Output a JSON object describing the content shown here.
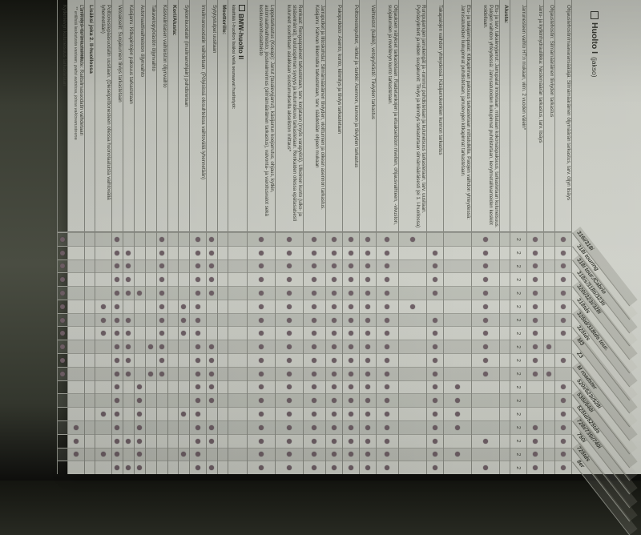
{
  "photo": {
    "background": "#3a3d33",
    "paper": "#cccec6",
    "band": "#b7b9b1",
    "dot": "#6b5c62",
    "grid": "#83857d",
    "ink": "#3b3d35"
  },
  "document": {
    "title": "Huolto I",
    "title_suffix": "(jakso)",
    "models": [
      "316i/318i",
      "318i touring",
      "318i tour./Cabrio",
      "318is/318ti/323ti",
      "320i/323i/328i",
      "318tds",
      "325td/318tds tour.",
      "325tds",
      "M3",
      "Z3",
      "M roadster",
      "520i/523i/528i",
      "535i/540i",
      "525td/525tds",
      "728i/735i/740i",
      "750i",
      "725tds",
      "8er"
    ],
    "rows": [
      {
        "kind": "task",
        "text": "Ohjaustehostin/maavaransäätäjä: Silmämääräinen öljymäärän tarkastus, tarv. öljyn lisäys",
        "lines": 2,
        "mark": "dot",
        "models": [
          1,
          2,
          3,
          4,
          5,
          6,
          7,
          8,
          10,
          12,
          13,
          14,
          15,
          16,
          17,
          18
        ]
      },
      {
        "kind": "task",
        "text": "Ohjaustehostin: Silmämääräinen tiiviyden tarkastus",
        "lines": 1,
        "mark": "dot",
        "models": [
          9,
          11
        ]
      },
      {
        "kind": "task",
        "text": "Jarru- ja kytkinhydrauliikka: Nestemäärän tarkastus, tarv. lisäys",
        "lines": 2,
        "mark": "dot",
        "models": [
          1,
          2,
          3,
          4,
          5,
          6,
          7,
          8,
          9,
          10,
          11,
          15,
          16,
          17,
          18
        ]
      },
      {
        "kind": "task",
        "text": "Jarrunesteen vaihto HT:n mukaan, viim. 2 vuoden välein*",
        "lines": 2,
        "mark": "two",
        "models": "all"
      },
      {
        "kind": "header",
        "text": "Alusta:"
      },
      {
        "kind": "task",
        "text": "Etu- ja tarv. takalevyjarrut: Jarrupalat irrotetaan, mitataan kokonaispaksuus, tarkastetaan kuluneisuus. Palojen vaihdon yhteydessä: Jarrusatuloiden liukupinnat puhdistetaan, kevytmetallivanteiden keskiöt voidellaan.",
        "lines": 4,
        "mark": "dot",
        "models": [
          1,
          2,
          3,
          4,
          5,
          6,
          7,
          8,
          9,
          10,
          11,
          16,
          18
        ]
      },
      {
        "kind": "task",
        "text": "Etu- ja takajarrupalat: Kitkapinnan paksuus tarkastetaan mittatulkilla. Palojen vaihdon yhteydessä: Jarrusatuloiden liukupinnat puhdistetaan, jarrulevyjen kitkapinnat tarkastetaan.",
        "lines": 4,
        "mark": "dot",
        "models": [
          12,
          13,
          14,
          15,
          17
        ]
      },
      {
        "kind": "task",
        "text": "Takapalojen vaihdon yhteydessä: Käsijarrukenkien kunnon tarkastus",
        "lines": 2,
        "mark": "dot",
        "models": [
          2,
          3,
          4,
          5,
          7,
          8,
          9,
          10,
          11,
          12,
          13,
          14,
          15,
          16,
          17,
          18
        ]
      },
      {
        "kind": "task",
        "text": "Rumpujarrujen jarrukengät ja -rummut puhdistetaan ja kuluneisuus tarkastetaan, tarv. uusitaan. Pyöräsylinterit ja niiden suojakumit: Tiiviys ja kiinnitys tarkastetaan silmämääräisesti (ei 1. I-huollossa)",
        "lines": 4,
        "mark": "dot",
        "models": [
          1,
          6
        ]
      },
      {
        "kind": "task",
        "text": "Ohjauksen välykset tarkastetaan. Raidetankojen ja etuakseliston nivelten, ohjausvaihteen, -vivuston, suojakumien ja nivellevyn kunto tarkastetaan.",
        "lines": 3,
        "mark": "dot",
        "models": "all"
      },
      {
        "kind": "task",
        "text": "Vaihteistot (kaikki), vetopyörästö: Tiiviyden tarkastus",
        "lines": 2,
        "mark": "dot",
        "models": "all"
      },
      {
        "kind": "task",
        "text": "Polttonesteputket, -letkut ja -tankki: Asennon, kunnon ja tiiviyden tarkastus",
        "lines": 2,
        "mark": "dot",
        "models": "all"
      },
      {
        "kind": "task",
        "text": "Pakoputkisto: Asento, kunto, kiinnitys ja tiiviys tarkastetaan",
        "lines": 2,
        "mark": "dot",
        "models": "all"
      },
      {
        "kind": "task",
        "text": "Jarruputket ja liitoskohdat: Silmämääräinen tiiviyden, vioittumien ja oikean asennon tarkastus. Käsijarru: Kahvan liikematka tarkastetaan, tarv. säädetään ohjeen mukaan",
        "lines": 3,
        "mark": "dot",
        "models": "all"
      },
      {
        "kind": "task",
        "text": "Renkaat: Rengaspaineet tarkastetaan, tarv. korjataan (myös varapyörä). Ulkoinen kunto (ulko- ja sisäseinämät), kulutuspinnan syvyys ja kulumiskuva tarkastetaan. Renkaiden ollessa epätasaisesti kuluneet suoritetaan asiakkaan suostumuksella akseliston mittaus*",
        "lines": 4,
        "mark": "dot",
        "models": "all"
      },
      {
        "kind": "task",
        "text": "Lopputarkastus (Koeajo): Jarrut (tasalevyjarrut), käsijarrun koejarrutus, ohjaus, kytkin, automaattivaihteisto, jousivaimennus (silmämääräinen tarkastus), valvonta- ja varoitusvalot sekä keskusvaroituslaitteisto",
        "lines": 4,
        "mark": "dot",
        "models": "all"
      },
      {
        "kind": "section",
        "text": "BMW-huolto II",
        "sub": "käsittää I-huollon lisäksi vielä seuraavat huoltotyöt:"
      },
      {
        "kind": "header",
        "text": "Moottorille:"
      },
      {
        "kind": "task",
        "text": "Sytytystulpat uusitaan",
        "lines": 1,
        "mark": "dot",
        "models": [
          1,
          2,
          3,
          4,
          5,
          9,
          10,
          11,
          12,
          13,
          15,
          16,
          18
        ]
      },
      {
        "kind": "task",
        "text": "Imuilmansuodatin vaihdetaan. (Pölyisissä olosuhteissa vaihtoväliä lyhennetään)",
        "lines": 2,
        "mark": "dot",
        "models": "all"
      },
      {
        "kind": "task",
        "text": "Syklonisuodatin (imuilmanohjain) puhdistetaan",
        "lines": 1,
        "mark": "dot",
        "models": [
          6,
          7,
          8,
          14,
          17
        ]
      },
      {
        "kind": "header",
        "text": "Kori/Alusta:"
      },
      {
        "kind": "task",
        "text": "Käsivalintaisen vaihteiston öljynvaihto",
        "lines": 1,
        "mark": "dot",
        "models": [
          1,
          2,
          3,
          4,
          5,
          6,
          7,
          8,
          9,
          10,
          11
        ]
      },
      {
        "kind": "task",
        "text": "Takavetopyörästön öljynvaihto",
        "lines": 1,
        "mark": "dot",
        "models": [
          9,
          11
        ]
      },
      {
        "kind": "task",
        "text": "Automaattivaihteiston öljynvaihto",
        "lines": 1,
        "mark": "dot",
        "models": [
          5,
          12,
          13,
          14,
          15,
          16,
          17,
          18
        ]
      },
      {
        "kind": "task",
        "text": "Käsijarru: Kitkapintojen paksuus tarkastetaan",
        "lines": 1,
        "mark": "dot",
        "models": [
          2,
          3,
          4,
          5,
          7,
          8,
          9,
          10,
          11,
          16,
          18
        ]
      },
      {
        "kind": "task",
        "text": "Vetoakselit: Suojakumien tiiviys tarkastetaan",
        "lines": 1,
        "mark": "dot",
        "models": "all"
      },
      {
        "kind": "task",
        "text": "Polttonestepääsuodatin uusitaan. (Dieselpolttonesteen ollessa huonolaatuista vaihtoväliä lyhennetään)",
        "lines": 2,
        "mark": "dot",
        "models": [
          6,
          7,
          8,
          14,
          17
        ]
      },
      {
        "kind": "header",
        "text": "Lisäksi joka 2. II-huollossa"
      },
      {
        "kind": "task",
        "text": "Lämmitys- tai ilmastointilaite: Raitisilmasuodatin vaihdetaan",
        "lines": 2,
        "mark": "dot",
        "models": [
          15,
          16,
          17
        ]
      },
      {
        "kind": "task",
        "text": "Kytkinlevyn kuluneisuus tarkastetaan",
        "lines": 1,
        "mark": "dot",
        "models": [
          1,
          2,
          3,
          4,
          5,
          6,
          7,
          8,
          9,
          10,
          11
        ]
      }
    ],
    "footnotes": [
      "* erillistä laskutusta vastaan",
      "** erillistä laskutusta vastaan, paitsi autoissa, joissa vakiovarusteena"
    ]
  }
}
